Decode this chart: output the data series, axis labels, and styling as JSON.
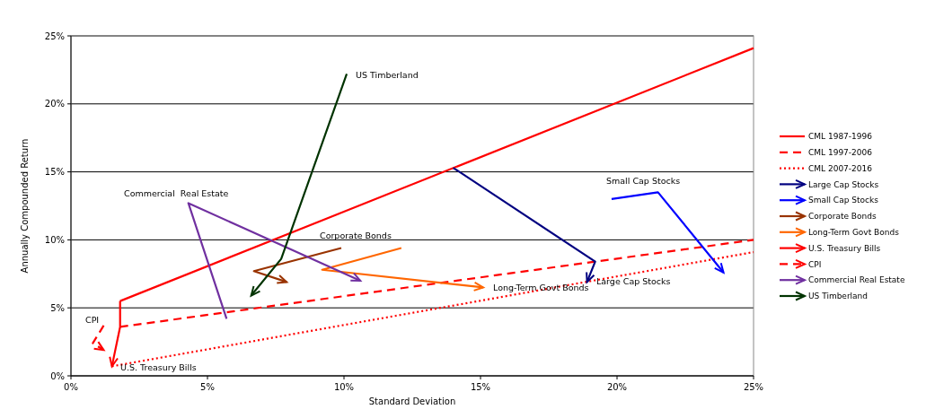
{
  "chart_data": {
    "type": "line",
    "xlabel": "Standard Deviation",
    "ylabel": "Annually Compounded Return",
    "xlim": [
      0,
      25
    ],
    "xticks": [
      {
        "value": 0,
        "label": "0%"
      },
      {
        "value": 5,
        "label": "5%"
      },
      {
        "value": 10,
        "label": "10%"
      },
      {
        "value": 15,
        "label": "15%"
      },
      {
        "value": 20,
        "label": "20%"
      },
      {
        "value": 25,
        "label": "25%"
      }
    ],
    "ylim": [
      0,
      25
    ],
    "yticks": [
      {
        "value": 0,
        "label": "0%"
      },
      {
        "value": 5,
        "label": "5%"
      },
      {
        "value": 10,
        "label": "10%"
      },
      {
        "value": 15,
        "label": "15%"
      },
      {
        "value": 20,
        "label": "20%"
      },
      {
        "value": 25,
        "label": "25%"
      }
    ],
    "grid": "y",
    "legend": "right",
    "series": [
      {
        "name": "CML 1987-1996",
        "color": "#ff0000",
        "line_style": "solid",
        "x": [
          1.8,
          25
        ],
        "values": [
          5.5,
          24.1
        ]
      },
      {
        "name": "CML 1997-2006",
        "color": "#ff0000",
        "line_style": "dashed",
        "x": [
          1.8,
          25
        ],
        "values": [
          3.6,
          10
        ]
      },
      {
        "name": "CML 2007-2016",
        "color": "#ff0000",
        "line_style": "dotted",
        "x": [
          1.5,
          25
        ],
        "values": [
          0.7,
          9.1
        ]
      },
      {
        "name": "Large Cap Stocks",
        "color": "#000080",
        "line_style": "solid",
        "x": [
          14,
          19.2,
          18.9
        ],
        "values": [
          15.3,
          8.4,
          6.9
        ]
      },
      {
        "name": "Small Cap Stocks",
        "color": "#0000ff",
        "line_style": "solid",
        "x": [
          19.8,
          21.5,
          23.9
        ],
        "values": [
          13,
          13.5,
          7.6
        ]
      },
      {
        "name": "Corporate Bonds",
        "color": "#993300",
        "line_style": "solid",
        "x": [
          9.9,
          6.7,
          7.9
        ],
        "values": [
          9.4,
          7.7,
          6.9
        ]
      },
      {
        "name": "Long-Term Govt Bonds",
        "color": "#ff6600",
        "line_style": "solid",
        "x": [
          12.1,
          9.2,
          15.1
        ],
        "values": [
          9.4,
          7.8,
          6.5
        ]
      },
      {
        "name": "U.S. Treasury Bills",
        "color": "#ff0000",
        "line_style": "solid",
        "x": [
          1.8,
          1.8,
          1.5
        ],
        "values": [
          5.5,
          3.6,
          0.7
        ]
      },
      {
        "name": "CPI",
        "color": "#ff0000",
        "line_style": "dashed",
        "x": [
          1.2,
          0.8,
          1.2
        ],
        "values": [
          3.7,
          2.4,
          1.9
        ]
      },
      {
        "name": "Commercial Real Estate",
        "color": "#7030a0",
        "line_style": "solid",
        "x": [
          5.7,
          4.3,
          10.6
        ],
        "values": [
          4.2,
          12.7,
          7
        ]
      },
      {
        "name": "US Timberland",
        "color": "#003300",
        "line_style": "solid",
        "x": [
          10.1,
          7.7,
          6.6
        ],
        "values": [
          22.2,
          8.6,
          5.9
        ]
      }
    ],
    "annotations": [
      "US Timberland",
      "Commercial  Real Estate",
      "Corporate Bonds",
      "Long-Term Govt Bonds",
      "Large Cap Stocks",
      "Small Cap Stocks",
      "CPI",
      "U.S. Treasury Bills"
    ]
  }
}
